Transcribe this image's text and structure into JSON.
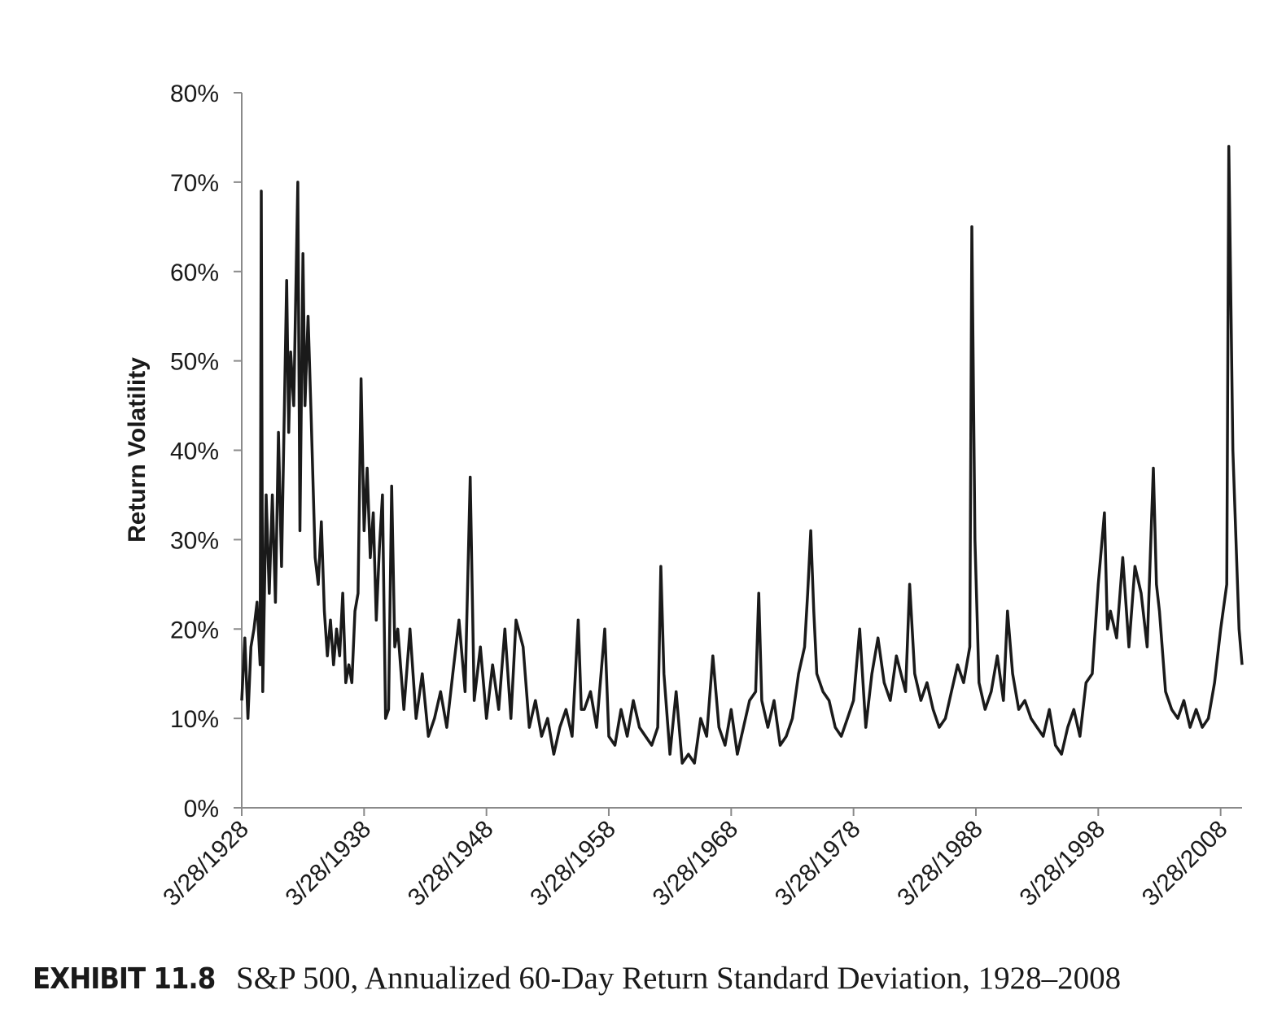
{
  "chart_data": {
    "type": "line",
    "y_label": "Return Volatility",
    "exhibit_label": "EXHIBIT 11.8",
    "caption": "S&P 500, Annualized 60-Day Return Standard Deviation, 1928–2008",
    "color": "#1a1a1a",
    "xlim": [
      "3/28/1928",
      "12/28/2009"
    ],
    "xticks": [
      "3/28/1928",
      "3/28/1938",
      "3/28/1948",
      "3/28/1958",
      "3/28/1968",
      "3/28/1978",
      "3/28/1988",
      "3/28/1998",
      "3/28/2008"
    ],
    "ylim": [
      0,
      80
    ],
    "yticks": [
      {
        "value": 0,
        "label": "0%"
      },
      {
        "value": 10,
        "label": "10%"
      },
      {
        "value": 20,
        "label": "20%"
      },
      {
        "value": 30,
        "label": "30%"
      },
      {
        "value": 40,
        "label": "40%"
      },
      {
        "value": 50,
        "label": "50%"
      },
      {
        "value": 60,
        "label": "60%"
      },
      {
        "value": 70,
        "label": "70%"
      },
      {
        "value": 80,
        "label": "80%"
      }
    ],
    "x": [
      "3/28/1928",
      "6/28/1928",
      "9/28/1928",
      "12/28/1928",
      "3/28/1929",
      "6/28/1929",
      "9/28/1929",
      "11/1/1929",
      "12/15/1929",
      "3/28/1930",
      "6/28/1930",
      "9/28/1930",
      "12/28/1930",
      "3/28/1931",
      "6/28/1931",
      "11/28/1931",
      "1/28/1932",
      "3/28/1932",
      "6/28/1932",
      "10/28/1932",
      "12/28/1932",
      "3/28/1933",
      "5/28/1933",
      "8/28/1933",
      "11/28/1933",
      "3/28/1934",
      "6/28/1934",
      "9/28/1934",
      "12/28/1934",
      "3/28/1935",
      "6/28/1935",
      "9/28/1935",
      "12/28/1935",
      "3/28/1936",
      "6/28/1936",
      "9/28/1936",
      "12/28/1936",
      "3/28/1937",
      "6/28/1937",
      "9/28/1937",
      "12/28/1937",
      "3/28/1938",
      "6/28/1938",
      "9/28/1938",
      "12/28/1938",
      "3/28/1939",
      "6/28/1939",
      "9/28/1939",
      "12/28/1939",
      "3/28/1940",
      "6/28/1940",
      "9/28/1940",
      "12/28/1940",
      "6/28/1941",
      "12/28/1941",
      "6/28/1942",
      "12/28/1942",
      "6/28/1943",
      "12/28/1943",
      "6/28/1944",
      "12/28/1944",
      "6/28/1945",
      "12/28/1945",
      "6/28/1946",
      "11/28/1946",
      "3/28/1947",
      "9/28/1947",
      "3/28/1948",
      "9/28/1948",
      "3/28/1949",
      "9/28/1949",
      "3/28/1950",
      "8/28/1950",
      "3/28/1951",
      "9/28/1951",
      "3/28/1952",
      "9/28/1952",
      "3/28/1953",
      "9/28/1953",
      "3/28/1954",
      "9/28/1954",
      "3/28/1955",
      "9/28/1955",
      "12/28/1955",
      "3/28/1956",
      "9/28/1956",
      "3/28/1957",
      "11/28/1957",
      "3/28/1958",
      "9/28/1958",
      "3/28/1959",
      "9/28/1959",
      "3/28/1960",
      "9/28/1960",
      "3/28/1961",
      "9/28/1961",
      "3/28/1962",
      "6/28/1962",
      "9/28/1962",
      "3/28/1963",
      "9/28/1963",
      "3/28/1964",
      "9/28/1964",
      "3/28/1965",
      "9/28/1965",
      "3/28/1966",
      "9/28/1966",
      "3/28/1967",
      "9/28/1967",
      "3/28/1968",
      "9/28/1968",
      "3/28/1969",
      "9/28/1969",
      "3/28/1970",
      "6/28/1970",
      "9/28/1970",
      "3/28/1971",
      "9/28/1971",
      "3/28/1972",
      "9/28/1972",
      "3/28/1973",
      "9/28/1973",
      "3/28/1974",
      "6/28/1974",
      "9/28/1974",
      "12/28/1974",
      "3/28/1975",
      "9/28/1975",
      "3/28/1976",
      "9/28/1976",
      "3/28/1977",
      "9/28/1977",
      "3/28/1978",
      "9/28/1978",
      "3/28/1979",
      "9/28/1979",
      "3/28/1980",
      "9/28/1980",
      "3/28/1981",
      "9/28/1981",
      "6/28/1982",
      "10/28/1982",
      "3/28/1983",
      "9/28/1983",
      "3/28/1984",
      "9/28/1984",
      "3/28/1985",
      "9/28/1985",
      "3/28/1986",
      "9/28/1986",
      "3/28/1987",
      "9/28/1987",
      "11/28/1987",
      "2/28/1988",
      "6/28/1988",
      "12/28/1988",
      "6/28/1989",
      "12/28/1989",
      "6/28/1990",
      "10/28/1990",
      "3/28/1991",
      "9/28/1991",
      "3/28/1992",
      "9/28/1992",
      "3/28/1993",
      "9/28/1993",
      "3/28/1994",
      "9/28/1994",
      "3/28/1995",
      "9/28/1995",
      "3/28/1996",
      "9/28/1996",
      "3/28/1997",
      "9/28/1997",
      "3/28/1998",
      "9/28/1998",
      "12/28/1998",
      "3/28/1999",
      "9/28/1999",
      "3/28/2000",
      "9/28/2000",
      "3/28/2001",
      "9/28/2001",
      "3/28/2002",
      "9/28/2002",
      "12/28/2002",
      "3/28/2003",
      "9/28/2003",
      "3/28/2004",
      "9/28/2004",
      "3/28/2005",
      "9/28/2005",
      "3/28/2006",
      "9/28/2006",
      "3/28/2007",
      "9/28/2007",
      "3/28/2008",
      "9/28/2008",
      "11/28/2008",
      "3/28/2009",
      "9/28/2009",
      "12/28/2009"
    ],
    "values": [
      12,
      19,
      10,
      18,
      20,
      23,
      16,
      69,
      13,
      35,
      24,
      35,
      23,
      42,
      27,
      59,
      42,
      51,
      45,
      70,
      31,
      62,
      45,
      55,
      44,
      28,
      25,
      32,
      22,
      17,
      21,
      16,
      20,
      17,
      24,
      14,
      16,
      14,
      22,
      24,
      48,
      31,
      38,
      28,
      33,
      21,
      29,
      35,
      10,
      11,
      36,
      18,
      20,
      11,
      20,
      10,
      15,
      8,
      10,
      13,
      9,
      15,
      21,
      13,
      37,
      12,
      18,
      10,
      16,
      11,
      20,
      10,
      21,
      18,
      9,
      12,
      8,
      10,
      6,
      9,
      11,
      8,
      21,
      11,
      11,
      13,
      9,
      20,
      8,
      7,
      11,
      8,
      12,
      9,
      8,
      7,
      9,
      27,
      15,
      6,
      13,
      5,
      6,
      5,
      10,
      8,
      17,
      9,
      7,
      11,
      6,
      9,
      12,
      13,
      24,
      12,
      9,
      12,
      7,
      8,
      10,
      15,
      18,
      24,
      31,
      22,
      15,
      13,
      12,
      9,
      8,
      10,
      12,
      20,
      9,
      15,
      19,
      14,
      12,
      17,
      13,
      25,
      15,
      12,
      14,
      11,
      9,
      10,
      13,
      16,
      14,
      18,
      65,
      30,
      14,
      11,
      13,
      17,
      12,
      22,
      15,
      11,
      12,
      10,
      9,
      8,
      11,
      7,
      6,
      9,
      11,
      8,
      14,
      15,
      25,
      33,
      20,
      22,
      19,
      28,
      18,
      27,
      24,
      18,
      38,
      25,
      22,
      13,
      11,
      10,
      12,
      9,
      11,
      9,
      10,
      14,
      20,
      25,
      74,
      40,
      20,
      16
    ]
  }
}
